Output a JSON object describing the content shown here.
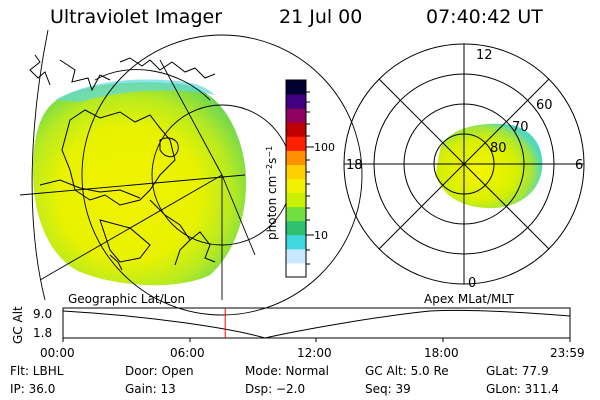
{
  "header": {
    "title": "Ultraviolet Imager",
    "date": "21 Jul 00",
    "time": "07:40:42 UT"
  },
  "left_panel": {
    "label": "Geographic Lat/Lon"
  },
  "right_panel": {
    "label": "Apex MLat/MLT",
    "mlt_labels": {
      "top": "12",
      "bottom": "0",
      "left": "18",
      "right": "6"
    },
    "lat_labels": [
      "60",
      "70",
      "80"
    ]
  },
  "colorbar": {
    "unit_label": "photon cm",
    "exp1": "−2",
    "mid": "s",
    "exp2": "−1",
    "tick_labels": [
      "100",
      "10"
    ],
    "colors": [
      "#ffffff",
      "#c8e8ff",
      "#40d8e0",
      "#30c070",
      "#70e040",
      "#c8f000",
      "#f0f000",
      "#ffd000",
      "#ff9000",
      "#ff2000",
      "#c00000",
      "#900060",
      "#400080",
      "#000030"
    ]
  },
  "timeline": {
    "y_label": "GC Alt",
    "y_max": "9.0",
    "y_min": "1.8",
    "x_ticks": [
      "00:00",
      "06:00",
      "12:00",
      "18:00",
      "23:59"
    ],
    "current_time_fraction": 0.32
  },
  "info_rows": [
    [
      "Flt: LBHL",
      "Door: Open",
      "Mode: Normal",
      "GC Alt: 5.0 Re",
      "GLat:  77.9"
    ],
    [
      "IP: 36.0",
      "Gain: 13",
      "Dsp:   −2.0",
      "Seq: 39",
      "GLon: 311.4"
    ]
  ]
}
